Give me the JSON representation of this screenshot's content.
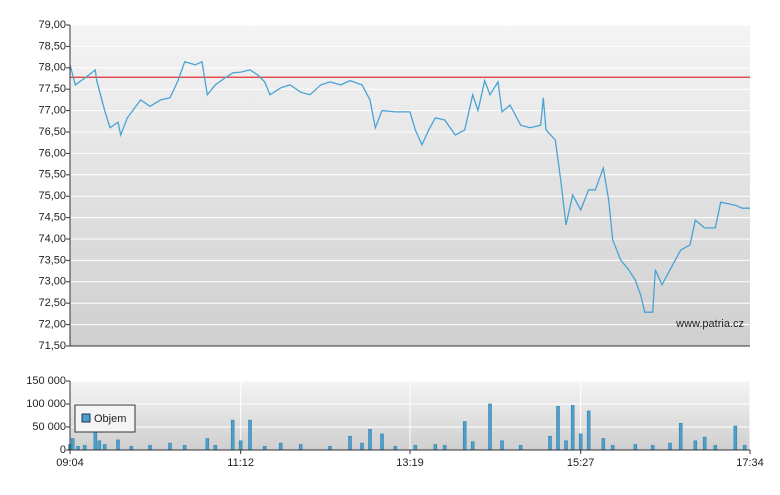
{
  "chart_data": [
    {
      "type": "line",
      "x": [
        "09:04",
        "09:08",
        "09:15",
        "09:23",
        "09:24",
        "09:30",
        "09:34",
        "09:40",
        "09:42",
        "09:47",
        "09:51",
        "09:57",
        "10:04",
        "10:12",
        "10:19",
        "10:25",
        "10:30",
        "10:38",
        "10:43",
        "10:47",
        "10:53",
        "11:00",
        "11:06",
        "11:12",
        "11:19",
        "11:25",
        "11:30",
        "11:34",
        "11:42",
        "11:49",
        "11:57",
        "12:04",
        "12:12",
        "12:19",
        "12:27",
        "12:34",
        "12:43",
        "12:49",
        "12:53",
        "12:58",
        "13:08",
        "13:19",
        "13:23",
        "13:28",
        "13:33",
        "13:38",
        "13:45",
        "13:53",
        "14:00",
        "14:06",
        "14:10",
        "14:15",
        "14:19",
        "14:25",
        "14:28",
        "14:34",
        "14:42",
        "14:49",
        "14:57",
        "14:59",
        "15:01",
        "15:08",
        "15:12",
        "15:16",
        "15:21",
        "15:27",
        "15:33",
        "15:38",
        "15:44",
        "15:48",
        "15:51",
        "15:57",
        "16:03",
        "16:08",
        "16:12",
        "16:15",
        "16:21",
        "16:23",
        "16:28",
        "16:34",
        "16:42",
        "16:49",
        "16:53",
        "17:00",
        "17:08",
        "17:12",
        "17:23",
        "17:28",
        "17:34"
      ],
      "series": [
        {
          "color": "#4aa3d4",
          "values": [
            78.07,
            77.6,
            77.76,
            77.95,
            77.7,
            77.0,
            76.6,
            76.73,
            76.43,
            76.83,
            77.0,
            77.25,
            77.1,
            77.25,
            77.3,
            77.7,
            78.14,
            78.07,
            78.14,
            77.37,
            77.6,
            77.76,
            77.88,
            77.9,
            77.95,
            77.83,
            77.67,
            77.37,
            77.53,
            77.6,
            77.43,
            77.37,
            77.6,
            77.67,
            77.6,
            77.7,
            77.6,
            77.25,
            76.6,
            77.0,
            76.97,
            76.97,
            76.55,
            76.2,
            76.55,
            76.83,
            76.78,
            76.43,
            76.55,
            77.37,
            77.0,
            77.7,
            77.37,
            77.67,
            76.97,
            77.13,
            76.66,
            76.6,
            76.66,
            77.3,
            76.55,
            76.31,
            75.38,
            74.33,
            75.03,
            74.68,
            75.15,
            75.15,
            75.66,
            74.91,
            73.98,
            73.51,
            73.28,
            73.04,
            72.69,
            72.29,
            72.29,
            73.28,
            72.93,
            73.28,
            73.74,
            73.86,
            74.44,
            74.26,
            74.26,
            74.86,
            74.79,
            74.72,
            74.72
          ]
        }
      ],
      "xlim": [
        "09:04",
        "17:34"
      ],
      "ylim": [
        71.5,
        79.0
      ],
      "yticks": [
        {
          "value": 71.5,
          "label": "71,50"
        },
        {
          "value": 72,
          "label": "72,00"
        },
        {
          "value": 72.5,
          "label": "72,50"
        },
        {
          "value": 73,
          "label": "73,00"
        },
        {
          "value": 73.5,
          "label": "73,50"
        },
        {
          "value": 74,
          "label": "74,00"
        },
        {
          "value": 74.5,
          "label": "74,50"
        },
        {
          "value": 75,
          "label": "75,00"
        },
        {
          "value": 75.5,
          "label": "75,50"
        },
        {
          "value": 76,
          "label": "76,00"
        },
        {
          "value": 76.5,
          "label": "76,50"
        },
        {
          "value": 77,
          "label": "77,00"
        },
        {
          "value": 77.5,
          "label": "77,50"
        },
        {
          "value": 78,
          "label": "78,00"
        },
        {
          "value": 78.5,
          "label": "78,50"
        },
        {
          "value": 79,
          "label": "79,00"
        }
      ],
      "reference_line": {
        "value": 77.78,
        "color": "#e03030"
      },
      "annotation": "www.patria.cz",
      "grid": true
    },
    {
      "type": "bar",
      "x": [
        "09:04",
        "09:06",
        "09:10",
        "09:15",
        "09:23",
        "09:26",
        "09:30",
        "09:40",
        "09:50",
        "10:04",
        "10:19",
        "10:30",
        "10:47",
        "10:53",
        "11:06",
        "11:12",
        "11:19",
        "11:30",
        "11:42",
        "11:57",
        "12:19",
        "12:34",
        "12:43",
        "12:49",
        "12:58",
        "13:08",
        "13:23",
        "13:38",
        "13:45",
        "14:00",
        "14:06",
        "14:19",
        "14:28",
        "14:42",
        "15:04",
        "15:10",
        "15:16",
        "15:21",
        "15:27",
        "15:33",
        "15:44",
        "15:51",
        "16:08",
        "16:21",
        "16:34",
        "16:42",
        "16:53",
        "17:00",
        "17:08",
        "17:23",
        "17:30"
      ],
      "series": [
        {
          "name": "Objem",
          "color": "#4a9fcc",
          "values": [
            12000,
            25000,
            8000,
            10000,
            90000,
            20000,
            12000,
            22000,
            8000,
            10000,
            15000,
            10000,
            25000,
            10000,
            65000,
            20000,
            65000,
            8000,
            15000,
            12000,
            8000,
            30000,
            15000,
            45000,
            35000,
            8000,
            10000,
            12000,
            10000,
            62000,
            18000,
            100000,
            20000,
            10000,
            30000,
            95000,
            20000,
            97000,
            35000,
            85000,
            25000,
            10000,
            12000,
            10000,
            15000,
            58000,
            20000,
            28000,
            10000,
            52000,
            10000
          ]
        }
      ],
      "xlim": [
        "09:04",
        "17:34"
      ],
      "xticks": [
        "09:04",
        "11:12",
        "13:19",
        "15:27",
        "17:34"
      ],
      "ylim": [
        0,
        150000
      ],
      "yticks": [
        0,
        {
          "value": 50000,
          "label": "50 000"
        },
        {
          "value": 100000,
          "label": "100 000"
        },
        {
          "value": 150000,
          "label": "150 000"
        }
      ],
      "grid": true
    }
  ]
}
